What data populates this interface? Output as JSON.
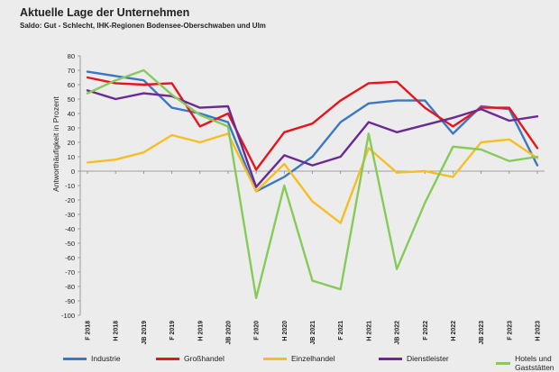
{
  "title": "Aktuelle Lage der Unternehmen",
  "subtitle": "Saldo: Gut - Schlecht, IHK-Regionen Bodensee-Oberschwaben und Ulm",
  "chart_data": {
    "type": "line",
    "ylabel": "Antworthäufigkeit in Prozent",
    "xlabel": "",
    "ylim": [
      -100,
      80
    ],
    "ytick_step": 10,
    "grid": false,
    "legend_position": "bottom",
    "categories": [
      "F 2018",
      "H 2018",
      "JB 2019",
      "F 2019",
      "H 2019",
      "JB 2020",
      "F 2020",
      "H 2020",
      "JB 2021",
      "F 2021",
      "H 2021",
      "JB 2022",
      "F 2022",
      "H 2022",
      "JB 2023",
      "F 2023",
      "H 2023"
    ],
    "series": [
      {
        "name": "Industrie",
        "color": "#3b78c4",
        "values": [
          69,
          66,
          63,
          44,
          40,
          34,
          -14,
          -4,
          10,
          34,
          47,
          49,
          49,
          26,
          45,
          43,
          4
        ]
      },
      {
        "name": "Großhandel",
        "color": "#e8141b",
        "values": [
          65,
          61,
          60,
          61,
          31,
          40,
          1,
          27,
          33,
          49,
          61,
          62,
          44,
          31,
          44,
          44,
          16
        ]
      },
      {
        "name": "Einzelhandel",
        "color": "#f6be23",
        "values": [
          6,
          8,
          13,
          25,
          20,
          26,
          -14,
          5,
          -21,
          -36,
          16,
          -1,
          0,
          -4,
          20,
          22,
          9
        ]
      },
      {
        "name": "Dienstleister",
        "color": "#6a2a92",
        "values": [
          56,
          50,
          54,
          52,
          44,
          45,
          -11,
          11,
          4,
          10,
          34,
          27,
          32,
          37,
          43,
          35,
          38
        ]
      },
      {
        "name": "Hotels und Gaststätten",
        "color": "#86cb5a",
        "values": [
          54,
          63,
          70,
          53,
          39,
          31,
          -88,
          -10,
          -76,
          -82,
          26,
          -68,
          -22,
          17,
          15,
          7,
          10
        ]
      }
    ]
  }
}
